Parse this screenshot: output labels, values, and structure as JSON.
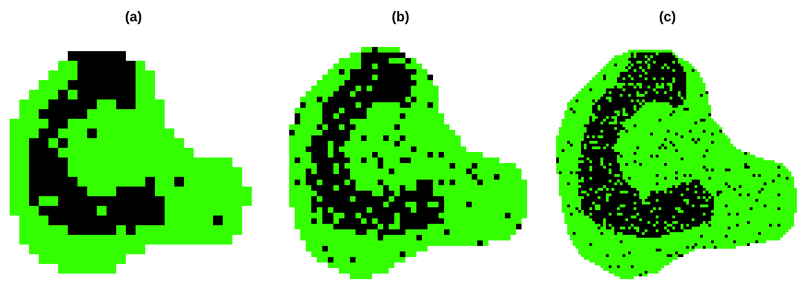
{
  "figure": {
    "panels": [
      {
        "label": "(a)",
        "resolution": "coarse"
      },
      {
        "label": "(b)",
        "resolution": "medium"
      },
      {
        "label": "(c)",
        "resolution": "fine"
      }
    ],
    "colors": {
      "tissue": "#33ff00",
      "core": "#000000",
      "background": "#ffffff"
    }
  }
}
